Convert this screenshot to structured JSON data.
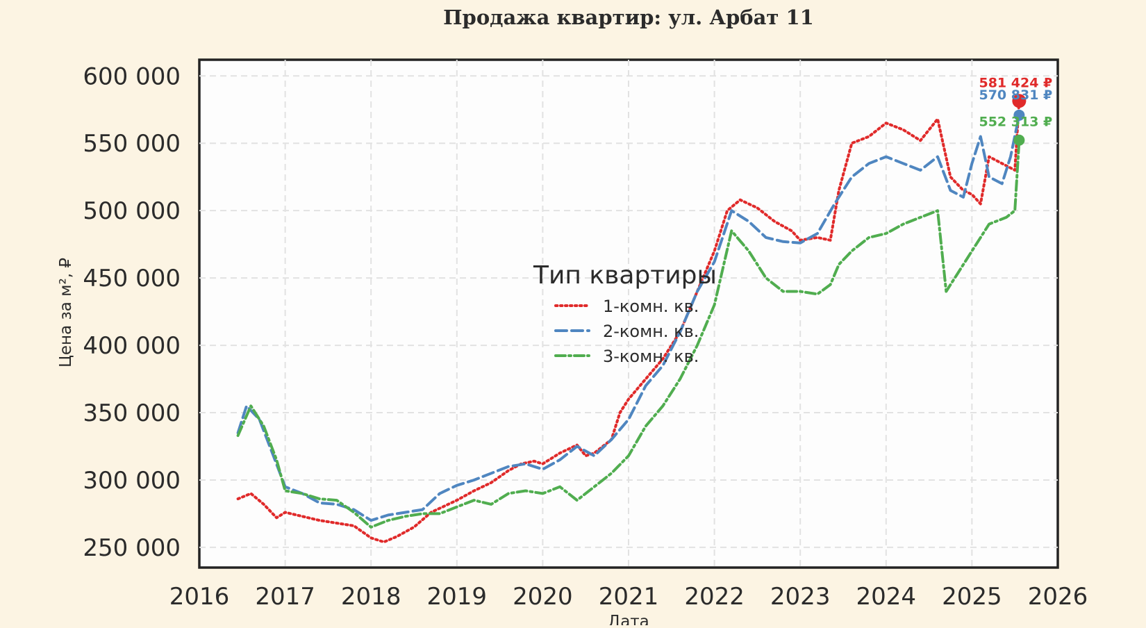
{
  "chart_data": {
    "type": "line",
    "title": "Продажа квартир: ул. Арбат 11",
    "xlabel": "Дата",
    "ylabel": "Цена за м², ₽",
    "xlim": [
      2016,
      2026
    ],
    "ylim": [
      235000,
      612000
    ],
    "x_ticks": [
      2016,
      2017,
      2018,
      2019,
      2020,
      2021,
      2022,
      2023,
      2024,
      2025,
      2026
    ],
    "y_ticks": [
      250000,
      300000,
      350000,
      400000,
      450000,
      500000,
      550000,
      600000
    ],
    "y_tick_labels": [
      "250 000",
      "300 000",
      "350 000",
      "400 000",
      "450 000",
      "500 000",
      "550 000",
      "600 000"
    ],
    "grid": true,
    "legend": {
      "title": "Тип квартиры",
      "position": "center"
    },
    "series": [
      {
        "name": "1-комн. кв.",
        "color": "#e02a2a",
        "style": "dotted",
        "end_label": "581 424 ₽",
        "end_value": 581424,
        "points": [
          [
            2016.45,
            286000
          ],
          [
            2016.6,
            290000
          ],
          [
            2016.75,
            282000
          ],
          [
            2016.9,
            272000
          ],
          [
            2017.0,
            276000
          ],
          [
            2017.2,
            273000
          ],
          [
            2017.4,
            270000
          ],
          [
            2017.6,
            268000
          ],
          [
            2017.8,
            266000
          ],
          [
            2018.0,
            257000
          ],
          [
            2018.15,
            254000
          ],
          [
            2018.3,
            258000
          ],
          [
            2018.5,
            265000
          ],
          [
            2018.7,
            276000
          ],
          [
            2018.9,
            282000
          ],
          [
            2019.0,
            285000
          ],
          [
            2019.2,
            292000
          ],
          [
            2019.4,
            298000
          ],
          [
            2019.6,
            307000
          ],
          [
            2019.75,
            312000
          ],
          [
            2019.9,
            314000
          ],
          [
            2020.0,
            312000
          ],
          [
            2020.2,
            320000
          ],
          [
            2020.4,
            326000
          ],
          [
            2020.5,
            318000
          ],
          [
            2020.6,
            320000
          ],
          [
            2020.8,
            330000
          ],
          [
            2020.9,
            350000
          ],
          [
            2021.0,
            360000
          ],
          [
            2021.2,
            375000
          ],
          [
            2021.4,
            390000
          ],
          [
            2021.6,
            410000
          ],
          [
            2021.8,
            440000
          ],
          [
            2022.0,
            470000
          ],
          [
            2022.15,
            500000
          ],
          [
            2022.3,
            508000
          ],
          [
            2022.5,
            502000
          ],
          [
            2022.7,
            492000
          ],
          [
            2022.9,
            485000
          ],
          [
            2023.0,
            478000
          ],
          [
            2023.2,
            480000
          ],
          [
            2023.35,
            478000
          ],
          [
            2023.45,
            515000
          ],
          [
            2023.6,
            550000
          ],
          [
            2023.8,
            555000
          ],
          [
            2024.0,
            565000
          ],
          [
            2024.2,
            560000
          ],
          [
            2024.4,
            552000
          ],
          [
            2024.6,
            568000
          ],
          [
            2024.75,
            525000
          ],
          [
            2024.9,
            515000
          ],
          [
            2025.0,
            512000
          ],
          [
            2025.1,
            505000
          ],
          [
            2025.2,
            540000
          ],
          [
            2025.35,
            535000
          ],
          [
            2025.5,
            530000
          ],
          [
            2025.55,
            581424
          ]
        ]
      },
      {
        "name": "2-комн. кв.",
        "color": "#4f86c0",
        "style": "dashed",
        "end_label": "570 831 ₽",
        "end_value": 570831,
        "points": [
          [
            2016.45,
            335000
          ],
          [
            2016.55,
            355000
          ],
          [
            2016.7,
            345000
          ],
          [
            2016.85,
            320000
          ],
          [
            2017.0,
            295000
          ],
          [
            2017.2,
            290000
          ],
          [
            2017.4,
            283000
          ],
          [
            2017.6,
            282000
          ],
          [
            2017.8,
            278000
          ],
          [
            2018.0,
            270000
          ],
          [
            2018.2,
            274000
          ],
          [
            2018.4,
            276000
          ],
          [
            2018.6,
            278000
          ],
          [
            2018.8,
            290000
          ],
          [
            2019.0,
            296000
          ],
          [
            2019.2,
            300000
          ],
          [
            2019.4,
            305000
          ],
          [
            2019.6,
            310000
          ],
          [
            2019.8,
            312000
          ],
          [
            2020.0,
            308000
          ],
          [
            2020.2,
            315000
          ],
          [
            2020.4,
            325000
          ],
          [
            2020.6,
            318000
          ],
          [
            2020.8,
            330000
          ],
          [
            2021.0,
            345000
          ],
          [
            2021.2,
            370000
          ],
          [
            2021.4,
            385000
          ],
          [
            2021.6,
            410000
          ],
          [
            2021.8,
            440000
          ],
          [
            2022.0,
            462000
          ],
          [
            2022.2,
            500000
          ],
          [
            2022.4,
            492000
          ],
          [
            2022.6,
            480000
          ],
          [
            2022.8,
            477000
          ],
          [
            2023.0,
            476000
          ],
          [
            2023.2,
            483000
          ],
          [
            2023.4,
            505000
          ],
          [
            2023.6,
            525000
          ],
          [
            2023.8,
            535000
          ],
          [
            2024.0,
            540000
          ],
          [
            2024.2,
            535000
          ],
          [
            2024.4,
            530000
          ],
          [
            2024.6,
            540000
          ],
          [
            2024.75,
            515000
          ],
          [
            2024.9,
            510000
          ],
          [
            2025.0,
            535000
          ],
          [
            2025.1,
            555000
          ],
          [
            2025.2,
            525000
          ],
          [
            2025.35,
            520000
          ],
          [
            2025.45,
            540000
          ],
          [
            2025.55,
            570831
          ]
        ]
      },
      {
        "name": "3-комн. кв.",
        "color": "#50ad4f",
        "style": "dashdot",
        "end_label": "552 313 ₽",
        "end_value": 552313,
        "points": [
          [
            2016.45,
            333000
          ],
          [
            2016.6,
            355000
          ],
          [
            2016.75,
            340000
          ],
          [
            2016.9,
            315000
          ],
          [
            2017.0,
            292000
          ],
          [
            2017.2,
            290000
          ],
          [
            2017.4,
            286000
          ],
          [
            2017.6,
            285000
          ],
          [
            2017.8,
            276000
          ],
          [
            2018.0,
            265000
          ],
          [
            2018.2,
            270000
          ],
          [
            2018.4,
            273000
          ],
          [
            2018.6,
            275000
          ],
          [
            2018.8,
            275000
          ],
          [
            2019.0,
            280000
          ],
          [
            2019.2,
            285000
          ],
          [
            2019.4,
            282000
          ],
          [
            2019.6,
            290000
          ],
          [
            2019.8,
            292000
          ],
          [
            2020.0,
            290000
          ],
          [
            2020.2,
            295000
          ],
          [
            2020.4,
            285000
          ],
          [
            2020.6,
            295000
          ],
          [
            2020.8,
            305000
          ],
          [
            2021.0,
            318000
          ],
          [
            2021.2,
            340000
          ],
          [
            2021.4,
            355000
          ],
          [
            2021.6,
            375000
          ],
          [
            2021.8,
            400000
          ],
          [
            2022.0,
            430000
          ],
          [
            2022.2,
            485000
          ],
          [
            2022.4,
            470000
          ],
          [
            2022.6,
            450000
          ],
          [
            2022.8,
            440000
          ],
          [
            2023.0,
            440000
          ],
          [
            2023.2,
            438000
          ],
          [
            2023.35,
            445000
          ],
          [
            2023.45,
            460000
          ],
          [
            2023.6,
            470000
          ],
          [
            2023.8,
            480000
          ],
          [
            2024.0,
            483000
          ],
          [
            2024.2,
            490000
          ],
          [
            2024.4,
            495000
          ],
          [
            2024.6,
            500000
          ],
          [
            2024.7,
            440000
          ],
          [
            2024.85,
            455000
          ],
          [
            2025.0,
            470000
          ],
          [
            2025.2,
            490000
          ],
          [
            2025.4,
            495000
          ],
          [
            2025.5,
            500000
          ],
          [
            2025.55,
            552313
          ]
        ]
      }
    ]
  }
}
